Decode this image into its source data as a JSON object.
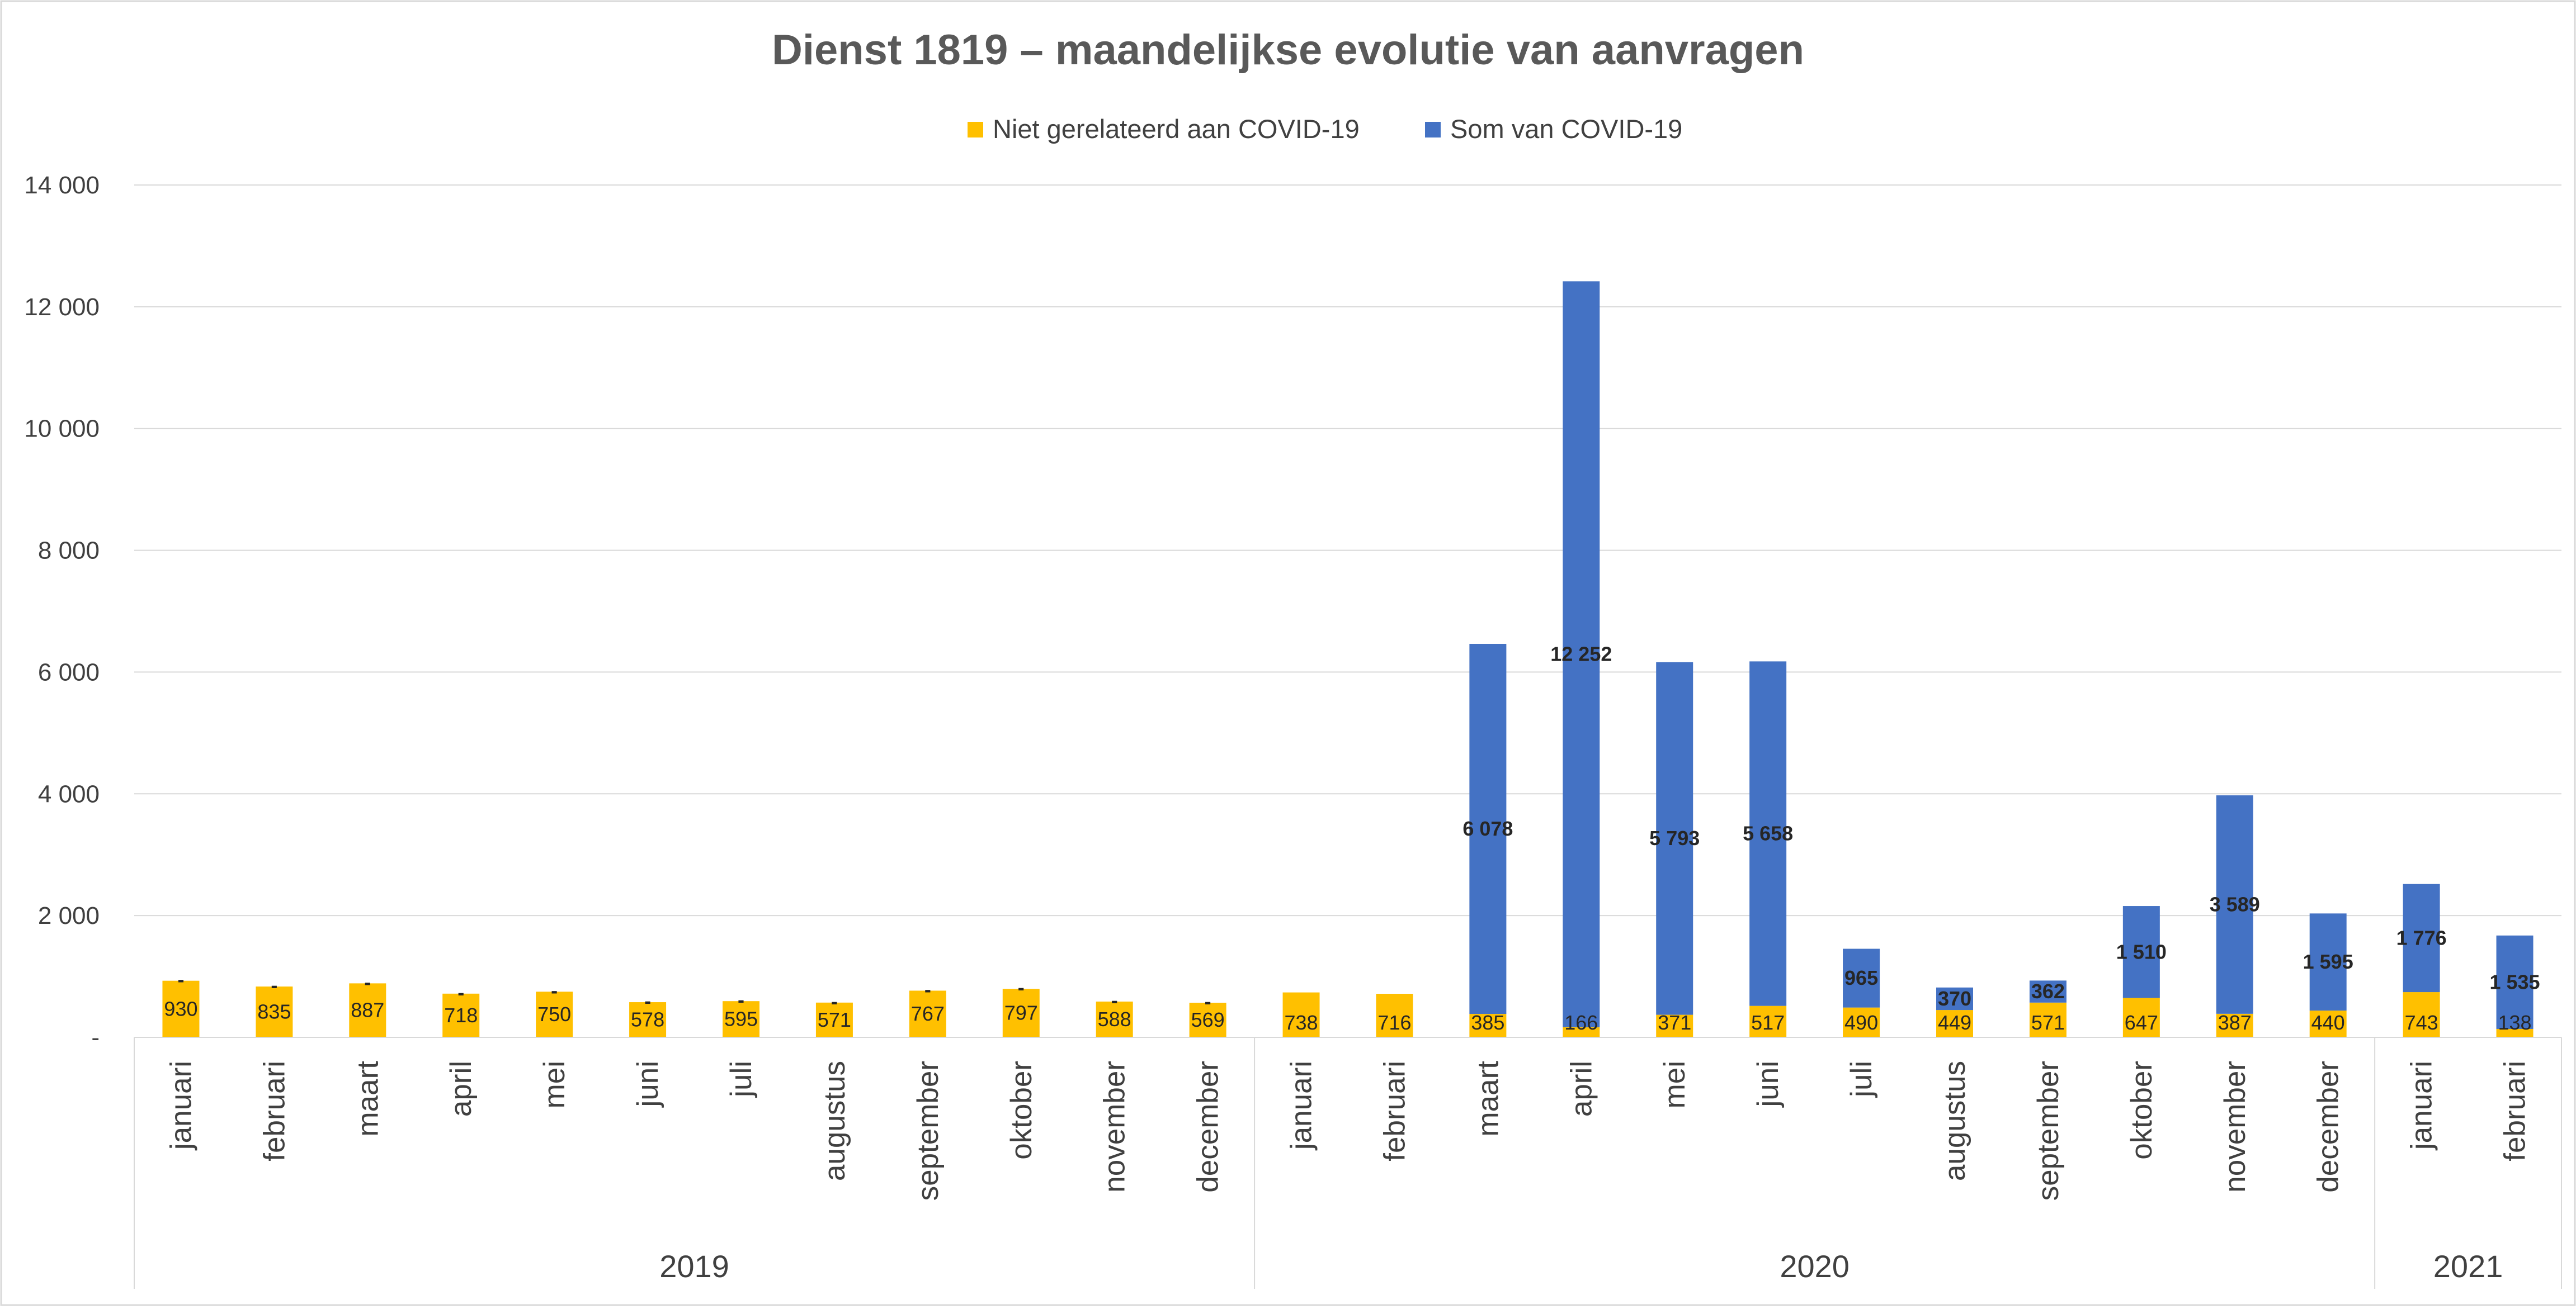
{
  "chart_data": {
    "type": "bar",
    "stacked": true,
    "title": "Dienst 1819 – maandelijkse evolutie van aanvragen",
    "xlabel": "",
    "ylabel": "",
    "ylim": [
      0,
      14000
    ],
    "yticks": [
      0,
      2000,
      4000,
      6000,
      8000,
      10000,
      12000,
      14000
    ],
    "ytick_labels": [
      "-",
      "2 000",
      "4 000",
      "6 000",
      "8 000",
      "10 000",
      "12 000",
      "14 000"
    ],
    "grid": true,
    "legend_position": "top-center",
    "categories": [
      "januari",
      "februari",
      "maart",
      "april",
      "mei",
      "juni",
      "juli",
      "augustus",
      "september",
      "oktober",
      "november",
      "december",
      "januari",
      "februari",
      "maart",
      "april",
      "mei",
      "juni",
      "juli",
      "augustus",
      "september",
      "oktober",
      "november",
      "december",
      "januari",
      "februari"
    ],
    "groups": [
      {
        "label": "2019",
        "start": 0,
        "count": 12
      },
      {
        "label": "2020",
        "start": 12,
        "count": 12
      },
      {
        "label": "2021",
        "start": 24,
        "count": 2
      }
    ],
    "series": [
      {
        "name": "Niet gerelateerd aan COVID-19",
        "color": "#FFC000",
        "values": [
          930,
          835,
          887,
          718,
          750,
          578,
          595,
          571,
          767,
          797,
          588,
          569,
          738,
          716,
          385,
          166,
          371,
          517,
          490,
          449,
          571,
          647,
          387,
          440,
          743,
          138
        ],
        "labels": [
          "930",
          "835",
          "887",
          "718",
          "750",
          "578",
          "595",
          "571",
          "767",
          "797",
          "588",
          "569",
          "738",
          "716",
          "385",
          "166",
          "371",
          "517",
          "490",
          "449",
          "571",
          "647",
          "387",
          "440",
          "743",
          "138"
        ]
      },
      {
        "name": "Som van COVID-19",
        "color": "#4472C4",
        "values": [
          0,
          0,
          0,
          0,
          0,
          0,
          0,
          0,
          0,
          0,
          0,
          0,
          0,
          0,
          6078,
          12252,
          5793,
          5658,
          965,
          370,
          362,
          1510,
          3589,
          1595,
          1776,
          1535
        ],
        "labels": [
          "-",
          "-",
          "-",
          "-",
          "-",
          "-",
          "-",
          "-",
          "-",
          "-",
          "-",
          "-",
          "",
          "",
          "6 078",
          "12 252",
          "5 793",
          "5 658",
          "965",
          "370",
          "362",
          "1 510",
          "3 589",
          "1 595",
          "1 776",
          "1 535"
        ]
      }
    ]
  }
}
